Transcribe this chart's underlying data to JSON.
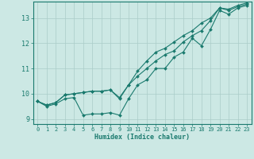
{
  "xlabel": "Humidex (Indice chaleur)",
  "ylabel": "",
  "bg_color": "#cce8e4",
  "line_color": "#1a7a6e",
  "grid_color": "#aaccc8",
  "xlim": [
    -0.5,
    23.5
  ],
  "ylim": [
    8.8,
    13.65
  ],
  "xticks": [
    0,
    1,
    2,
    3,
    4,
    5,
    6,
    7,
    8,
    9,
    10,
    11,
    12,
    13,
    14,
    15,
    16,
    17,
    18,
    19,
    20,
    21,
    22,
    23
  ],
  "yticks": [
    9,
    10,
    11,
    12,
    13
  ],
  "series1_x": [
    0,
    1,
    2,
    3,
    4,
    5,
    6,
    7,
    8,
    9,
    10,
    11,
    12,
    13,
    14,
    15,
    16,
    17,
    18,
    19,
    20,
    21,
    22,
    23
  ],
  "series1_y": [
    9.7,
    9.5,
    9.6,
    9.8,
    9.85,
    9.15,
    9.2,
    9.2,
    9.25,
    9.15,
    9.8,
    10.35,
    10.55,
    11.0,
    11.0,
    11.45,
    11.65,
    12.2,
    11.9,
    12.55,
    13.3,
    13.15,
    13.4,
    13.5
  ],
  "series2_x": [
    0,
    1,
    2,
    3,
    4,
    5,
    6,
    7,
    8,
    9,
    10,
    11,
    12,
    13,
    14,
    15,
    16,
    17,
    18,
    19,
    20,
    21,
    22,
    23
  ],
  "series2_y": [
    9.7,
    9.55,
    9.65,
    9.95,
    10.0,
    10.05,
    10.1,
    10.1,
    10.15,
    9.8,
    10.35,
    10.7,
    11.0,
    11.3,
    11.55,
    11.7,
    12.05,
    12.3,
    12.5,
    12.9,
    13.4,
    13.3,
    13.45,
    13.55
  ],
  "series3_x": [
    0,
    1,
    2,
    3,
    4,
    5,
    6,
    7,
    8,
    9,
    10,
    11,
    12,
    13,
    14,
    15,
    16,
    17,
    18,
    19,
    20,
    21,
    22,
    23
  ],
  "series3_y": [
    9.7,
    9.55,
    9.65,
    9.95,
    10.0,
    10.05,
    10.1,
    10.1,
    10.15,
    9.85,
    10.35,
    10.9,
    11.3,
    11.65,
    11.8,
    12.05,
    12.3,
    12.5,
    12.8,
    13.0,
    13.4,
    13.35,
    13.5,
    13.6
  ]
}
